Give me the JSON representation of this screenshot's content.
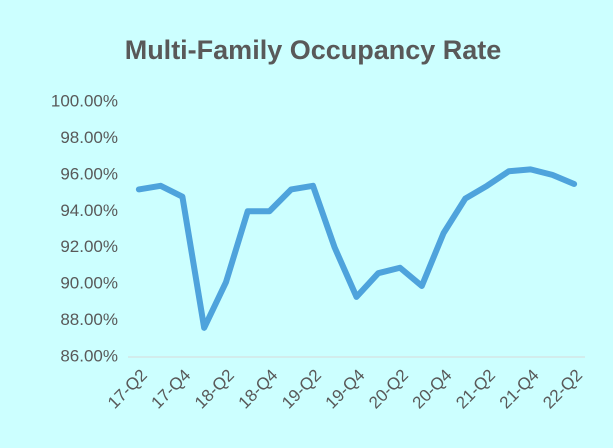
{
  "chart_data": {
    "type": "line",
    "title": "Multi-Family Occupancy Rate",
    "categories": [
      "17-Q2",
      null,
      "17-Q4",
      null,
      "18-Q2",
      null,
      "18-Q4",
      null,
      "19-Q2",
      null,
      "19-Q4",
      null,
      "20-Q2",
      null,
      "20-Q4",
      null,
      "21-Q2",
      null,
      "21-Q4",
      null,
      "22-Q2"
    ],
    "values": [
      95.2,
      95.4,
      94.8,
      87.6,
      90.1,
      94.0,
      94.0,
      95.2,
      95.4,
      92.0,
      89.3,
      90.6,
      90.9,
      89.9,
      92.8,
      94.7,
      95.4,
      96.2,
      96.3,
      96.0,
      95.5
    ],
    "color": "#4ea3dc",
    "ylim": [
      86,
      100
    ],
    "yticks": [
      {
        "value": 86,
        "label": "86.00%"
      },
      {
        "value": 88,
        "label": "88.00%"
      },
      {
        "value": 90,
        "label": "90.00%"
      },
      {
        "value": 92,
        "label": "92.00%"
      },
      {
        "value": 94,
        "label": "94.00%"
      },
      {
        "value": 96,
        "label": "96.00%"
      },
      {
        "value": 98,
        "label": "98.00%"
      },
      {
        "value": 100,
        "label": "100.00%"
      }
    ],
    "grid": false
  }
}
